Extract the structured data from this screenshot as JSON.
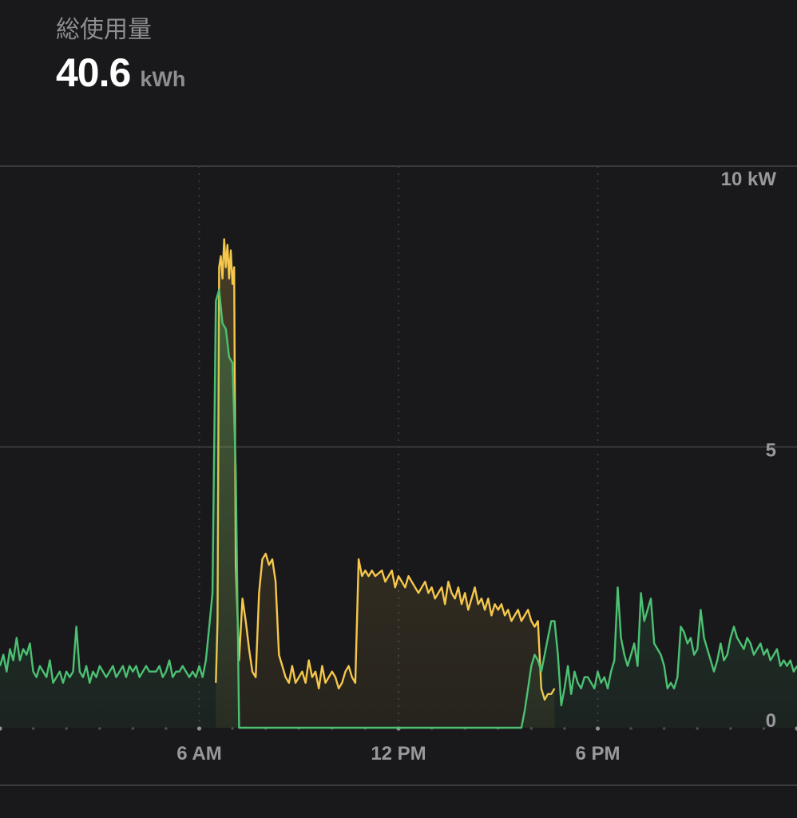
{
  "header": {
    "title": "総使用量",
    "total_value": "40.6",
    "total_unit": "kWh"
  },
  "colors": {
    "background": "#19191b",
    "grid": "#3a3a3c",
    "consumption_line": "#f5c84c",
    "grid_import_line": "#4cc173"
  },
  "chart_data": {
    "type": "area",
    "x_unit": "hours since midnight",
    "xlim": [
      0,
      24
    ],
    "ylim": [
      0,
      10
    ],
    "y_ticks": [
      {
        "value": 10,
        "label": "10 kW"
      },
      {
        "value": 5,
        "label": "5"
      },
      {
        "value": 0,
        "label": "0"
      }
    ],
    "x_ticks": [
      {
        "value": 6,
        "label": "6 AM"
      },
      {
        "value": 12,
        "label": "12 PM"
      },
      {
        "value": 18,
        "label": "6 PM"
      }
    ],
    "grid": true,
    "series": [
      {
        "key": "consumption",
        "color": "#f5c84c",
        "x": [
          6.5,
          6.55,
          6.6,
          6.65,
          6.7,
          6.75,
          6.8,
          6.85,
          6.9,
          6.95,
          7.0,
          7.05,
          7.1,
          7.2,
          7.3,
          7.4,
          7.5,
          7.6,
          7.7,
          7.8,
          7.9,
          8.0,
          8.1,
          8.2,
          8.3,
          8.4,
          8.5,
          8.6,
          8.7,
          8.8,
          8.9,
          9.0,
          9.1,
          9.2,
          9.3,
          9.4,
          9.5,
          9.6,
          9.7,
          9.8,
          9.9,
          10.0,
          10.1,
          10.2,
          10.3,
          10.4,
          10.5,
          10.6,
          10.7,
          10.8,
          10.9,
          11.0,
          11.1,
          11.2,
          11.3,
          11.5,
          11.6,
          11.7,
          11.8,
          11.9,
          12.0,
          12.1,
          12.2,
          12.3,
          12.4,
          12.5,
          12.6,
          12.7,
          12.8,
          12.9,
          13.0,
          13.1,
          13.2,
          13.3,
          13.4,
          13.5,
          13.6,
          13.7,
          13.8,
          13.9,
          14.0,
          14.1,
          14.2,
          14.3,
          14.4,
          14.5,
          14.6,
          14.7,
          14.8,
          14.9,
          15.0,
          15.1,
          15.2,
          15.3,
          15.4,
          15.5,
          15.6,
          15.7,
          15.8,
          15.9,
          16.0,
          16.1,
          16.2,
          16.3,
          16.4,
          16.5,
          16.6,
          16.7
        ],
        "y": [
          0.8,
          1.9,
          8.2,
          8.4,
          8.0,
          8.7,
          8.2,
          8.6,
          8.0,
          8.5,
          7.9,
          8.2,
          2.9,
          1.2,
          2.3,
          1.9,
          1.4,
          1.0,
          0.9,
          2.4,
          3.0,
          3.1,
          2.9,
          3.0,
          2.6,
          1.3,
          1.1,
          0.9,
          0.8,
          1.1,
          0.8,
          0.9,
          1.0,
          0.8,
          1.2,
          0.9,
          1.0,
          0.7,
          1.1,
          0.8,
          0.9,
          1.0,
          0.9,
          0.7,
          0.8,
          1.0,
          1.1,
          0.9,
          0.8,
          3.0,
          2.7,
          2.8,
          2.7,
          2.8,
          2.7,
          2.8,
          2.6,
          2.7,
          2.8,
          2.5,
          2.7,
          2.6,
          2.5,
          2.7,
          2.6,
          2.5,
          2.4,
          2.5,
          2.6,
          2.4,
          2.5,
          2.3,
          2.4,
          2.5,
          2.2,
          2.6,
          2.4,
          2.3,
          2.5,
          2.2,
          2.4,
          2.1,
          2.3,
          2.5,
          2.2,
          2.3,
          2.1,
          2.3,
          2.0,
          2.2,
          2.1,
          2.2,
          2.0,
          2.1,
          1.9,
          2.0,
          2.1,
          1.9,
          2.0,
          2.1,
          1.9,
          1.8,
          1.9,
          0.7,
          0.5,
          0.6,
          0.6,
          0.7
        ]
      },
      {
        "key": "grid_import",
        "color": "#4cc173",
        "x": [
          0.0,
          0.1,
          0.2,
          0.3,
          0.4,
          0.5,
          0.6,
          0.7,
          0.8,
          0.9,
          1.0,
          1.1,
          1.2,
          1.3,
          1.4,
          1.5,
          1.6,
          1.7,
          1.8,
          1.9,
          2.0,
          2.1,
          2.2,
          2.3,
          2.4,
          2.5,
          2.6,
          2.7,
          2.8,
          2.9,
          3.0,
          3.1,
          3.2,
          3.3,
          3.4,
          3.5,
          3.6,
          3.7,
          3.8,
          3.9,
          4.0,
          4.1,
          4.2,
          4.3,
          4.4,
          4.5,
          4.6,
          4.7,
          4.8,
          4.9,
          5.0,
          5.1,
          5.2,
          5.3,
          5.4,
          5.5,
          5.6,
          5.7,
          5.8,
          5.9,
          6.0,
          6.1,
          6.2,
          6.3,
          6.4,
          6.5,
          6.6,
          6.7,
          6.8,
          6.9,
          7.0,
          7.1,
          7.2,
          7.3,
          7.4,
          15.7,
          15.8,
          15.9,
          16.0,
          16.1,
          16.2,
          16.3,
          16.4,
          16.5,
          16.6,
          16.7,
          16.8,
          16.9,
          17.0,
          17.1,
          17.2,
          17.3,
          17.4,
          17.5,
          17.6,
          17.7,
          17.8,
          17.9,
          18.0,
          18.1,
          18.2,
          18.3,
          18.4,
          18.5,
          18.6,
          18.7,
          18.8,
          18.9,
          19.0,
          19.1,
          19.2,
          19.3,
          19.4,
          19.5,
          19.6,
          19.7,
          19.8,
          19.9,
          20.0,
          20.1,
          20.2,
          20.3,
          20.4,
          20.5,
          20.6,
          20.7,
          20.8,
          20.9,
          21.0,
          21.1,
          21.2,
          21.3,
          21.4,
          21.5,
          21.6,
          21.7,
          21.8,
          21.9,
          22.0,
          22.1,
          22.2,
          22.3,
          22.4,
          22.5,
          22.6,
          22.7,
          22.8,
          22.9,
          23.0,
          23.1,
          23.2,
          23.3,
          23.4,
          23.5,
          23.6,
          23.7,
          23.8,
          23.9,
          24.0
        ],
        "y": [
          1.1,
          1.3,
          1.0,
          1.4,
          1.2,
          1.6,
          1.2,
          1.4,
          1.3,
          1.5,
          1.0,
          0.9,
          1.1,
          1.0,
          0.9,
          1.2,
          0.8,
          0.9,
          1.0,
          0.8,
          1.0,
          0.9,
          1.0,
          1.8,
          1.0,
          0.9,
          1.1,
          0.8,
          1.0,
          0.9,
          1.1,
          1.0,
          0.9,
          1.0,
          1.1,
          0.9,
          1.0,
          1.1,
          0.9,
          1.1,
          1.0,
          1.1,
          0.9,
          1.0,
          1.1,
          1.0,
          1.0,
          1.0,
          1.1,
          0.9,
          1.0,
          1.2,
          0.9,
          1.0,
          1.0,
          1.1,
          1.0,
          0.9,
          1.0,
          0.9,
          1.1,
          0.9,
          1.2,
          1.8,
          2.4,
          7.6,
          7.8,
          7.2,
          7.1,
          6.6,
          6.5,
          4.6,
          0.0,
          0.0,
          0.0,
          0.0,
          0.3,
          0.7,
          1.1,
          1.3,
          1.2,
          1.0,
          1.3,
          1.6,
          1.9,
          1.9,
          1.3,
          0.4,
          0.7,
          1.1,
          0.6,
          1.0,
          0.8,
          0.7,
          0.9,
          0.9,
          0.8,
          0.7,
          1.0,
          0.8,
          0.9,
          0.7,
          1.0,
          1.2,
          2.5,
          1.6,
          1.3,
          1.1,
          1.3,
          1.5,
          1.1,
          2.4,
          1.9,
          2.1,
          2.3,
          1.5,
          1.4,
          1.3,
          1.1,
          0.7,
          0.8,
          0.7,
          0.9,
          1.8,
          1.7,
          1.5,
          1.6,
          1.3,
          1.4,
          2.1,
          1.6,
          1.4,
          1.2,
          1.0,
          1.2,
          1.5,
          1.2,
          1.3,
          1.6,
          1.8,
          1.6,
          1.5,
          1.4,
          1.6,
          1.5,
          1.3,
          1.4,
          1.5,
          1.3,
          1.4,
          1.2,
          1.3,
          1.4,
          1.1,
          1.2,
          1.1,
          1.2,
          1.0,
          1.1
        ]
      }
    ]
  }
}
